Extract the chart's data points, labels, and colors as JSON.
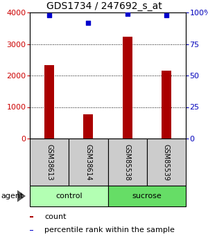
{
  "title": "GDS1734 / 247692_s_at",
  "samples": [
    "GSM38613",
    "GSM38614",
    "GSM85538",
    "GSM85539"
  ],
  "counts": [
    2320,
    760,
    3240,
    2150
  ],
  "percentiles": [
    98,
    92,
    99,
    98
  ],
  "group_colors": [
    "#b3ffb3",
    "#66dd66"
  ],
  "bar_color": "#aa0000",
  "percentile_color": "#0000cc",
  "left_ylim": [
    0,
    4000
  ],
  "right_ylim": [
    0,
    100
  ],
  "left_yticks": [
    0,
    1000,
    2000,
    3000,
    4000
  ],
  "right_yticks": [
    0,
    25,
    50,
    75,
    100
  ],
  "right_yticklabels": [
    "0",
    "25",
    "50",
    "75",
    "100%"
  ],
  "left_tick_color": "#cc0000",
  "right_tick_color": "#0000bb",
  "bar_width": 0.25,
  "sample_box_color": "#cccccc",
  "title_fontsize": 10,
  "tick_fontsize": 8,
  "agent_label": "agent",
  "legend_count_label": "count",
  "legend_percentile_label": "percentile rank within the sample"
}
